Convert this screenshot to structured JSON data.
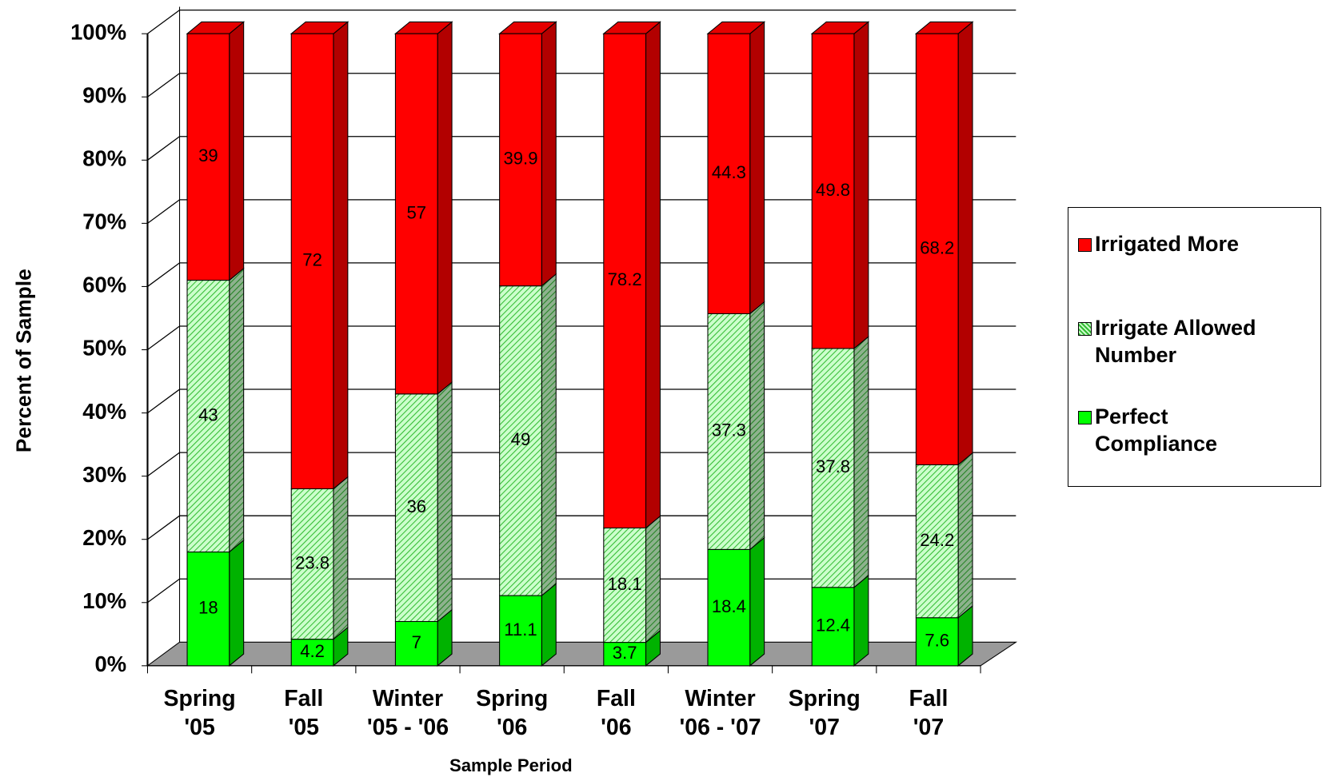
{
  "chart_data": {
    "type": "bar3d-stacked",
    "xlabel": "Sample Period",
    "ylabel": "Percent of Sample",
    "categories": [
      "Spring '05",
      "Fall '05",
      "Winter '05 - '06",
      "Spring '06",
      "Fall '06",
      "Winter '06 - '07",
      "Spring '07",
      "Fall '07"
    ],
    "series": [
      {
        "name": "Perfect Compliance",
        "color": "#00ff00",
        "values": [
          18,
          4.2,
          7,
          11.1,
          3.7,
          18.4,
          12.4,
          7.6
        ]
      },
      {
        "name": "Irrigate Allowed Number",
        "color": "#ccffcc",
        "hatch": true,
        "values": [
          43,
          23.8,
          36,
          49,
          18.1,
          37.3,
          37.8,
          24.2
        ]
      },
      {
        "name": "Irrigated More",
        "color": "#ff0000",
        "values": [
          39,
          72,
          57,
          39.9,
          78.2,
          44.3,
          49.8,
          68.2
        ]
      }
    ],
    "ylim": [
      0,
      100
    ],
    "yticks": [
      {
        "value": 0,
        "label": "0%"
      },
      {
        "value": 10,
        "label": "10%"
      },
      {
        "value": 20,
        "label": "20%"
      },
      {
        "value": 30,
        "label": "30%"
      },
      {
        "value": 40,
        "label": "40%"
      },
      {
        "value": 50,
        "label": "50%"
      },
      {
        "value": 60,
        "label": "60%"
      },
      {
        "value": 70,
        "label": "70%"
      },
      {
        "value": 80,
        "label": "80%"
      },
      {
        "value": 90,
        "label": "90%"
      },
      {
        "value": 100,
        "label": "100%"
      }
    ],
    "grid": true
  }
}
